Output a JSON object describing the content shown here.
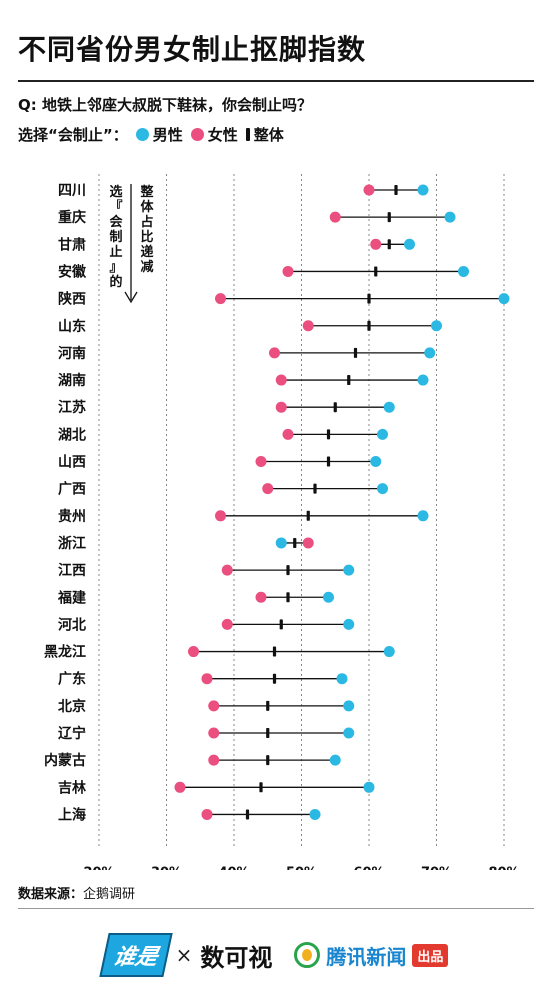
{
  "title": "不同省份男女制止抠脚指数",
  "question": "Q: 地铁上邻座大叔脱下鞋袜，你会制止吗？",
  "legend": {
    "prefix": "选择“会制止”：",
    "male": "男性",
    "female": "女性",
    "overall": "整体"
  },
  "annotation": {
    "line1": "整体占比递减",
    "line2": "选『会制止』的"
  },
  "source": {
    "label": "数据来源：",
    "value": "企鹅调研"
  },
  "logos": {
    "logo1": "谁是",
    "times": "×",
    "logo2": "数可视",
    "logo3": "腾讯新闻",
    "badge": "出品"
  },
  "colors": {
    "male": "#2bb8e3",
    "female": "#ea4f7f",
    "overall": "#111111",
    "grid": "#888888"
  },
  "chart_data": {
    "type": "dumbbell",
    "xlim": [
      20,
      80
    ],
    "xticks": [
      "20%",
      "30%",
      "40%",
      "50%",
      "60%",
      "70%",
      "80%"
    ],
    "xtick_values": [
      20,
      30,
      40,
      50,
      60,
      70,
      80
    ],
    "grid": "vertical dashed",
    "categories": [
      "四川",
      "重庆",
      "甘肃",
      "安徽",
      "陕西",
      "山东",
      "河南",
      "湖南",
      "江苏",
      "湖北",
      "山西",
      "广西",
      "贵州",
      "浙江",
      "江西",
      "福建",
      "河北",
      "黑龙江",
      "广东",
      "北京",
      "辽宁",
      "内蒙古",
      "吉林",
      "上海"
    ],
    "series": [
      {
        "name": "男性",
        "values": [
          68,
          72,
          66,
          74,
          80,
          70,
          69,
          68,
          63,
          62,
          61,
          62,
          68,
          47,
          57,
          54,
          57,
          63,
          56,
          57,
          57,
          55,
          60,
          52
        ]
      },
      {
        "name": "女性",
        "values": [
          60,
          55,
          61,
          48,
          38,
          51,
          46,
          47,
          47,
          48,
          44,
          45,
          38,
          51,
          39,
          44,
          39,
          34,
          36,
          37,
          37,
          37,
          32,
          36
        ]
      },
      {
        "name": "整体",
        "values": [
          64,
          63,
          63,
          61,
          60,
          60,
          58,
          57,
          55,
          54,
          54,
          52,
          51,
          49,
          48,
          48,
          47,
          46,
          46,
          45,
          45,
          45,
          44,
          42
        ]
      }
    ]
  }
}
